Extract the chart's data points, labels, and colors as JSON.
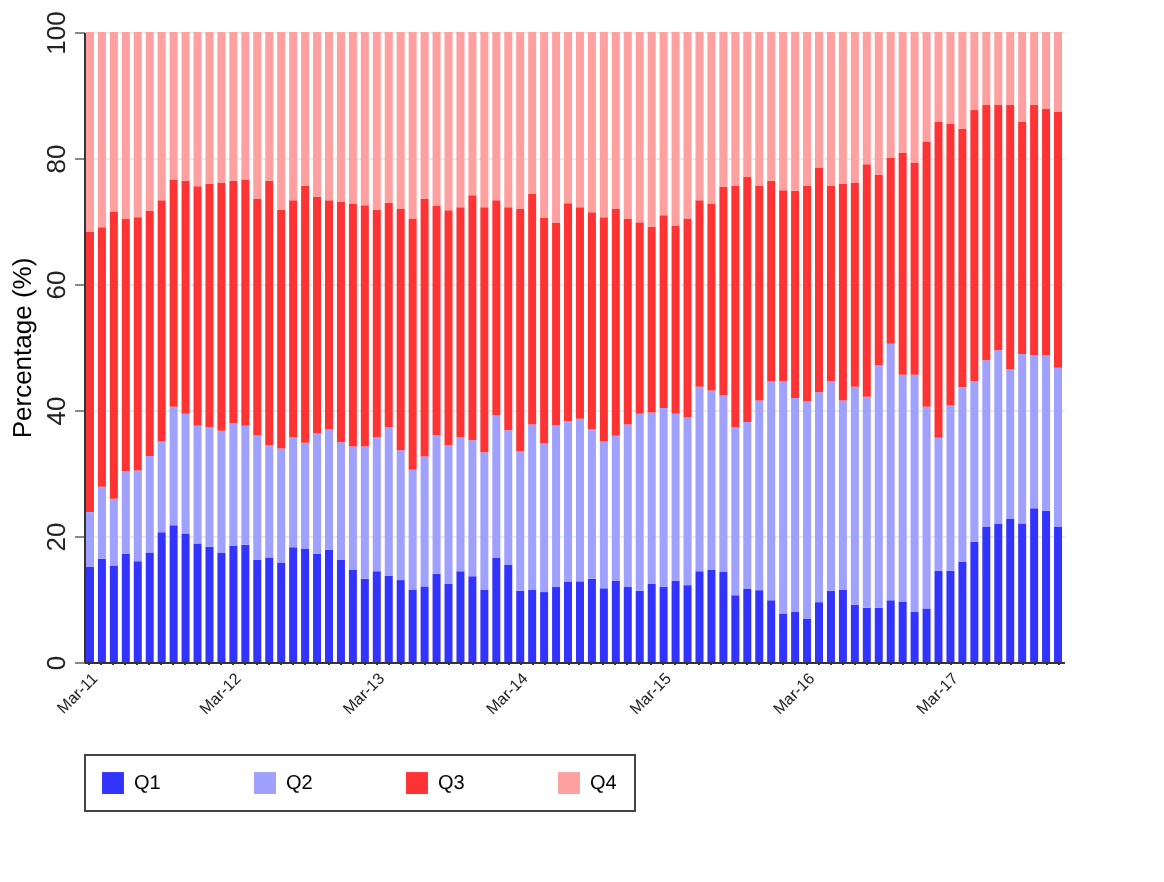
{
  "chart_data": {
    "type": "bar",
    "stacked": true,
    "ylabel": "Percentage (%)",
    "categories": [
      "Mar-11",
      null,
      null,
      null,
      null,
      null,
      null,
      null,
      null,
      null,
      null,
      null,
      "Mar-12",
      null,
      null,
      null,
      null,
      null,
      null,
      null,
      null,
      null,
      null,
      null,
      "Mar-13",
      null,
      null,
      null,
      null,
      null,
      null,
      null,
      null,
      null,
      null,
      null,
      "Mar-14",
      null,
      null,
      null,
      null,
      null,
      null,
      null,
      null,
      null,
      null,
      null,
      "Mar-15",
      null,
      null,
      null,
      null,
      null,
      null,
      null,
      null,
      null,
      null,
      null,
      "Mar-16",
      null,
      null,
      null,
      null,
      null,
      null,
      null,
      null,
      null,
      null,
      null,
      "Mar-17",
      null,
      null,
      null,
      null,
      null,
      null,
      null,
      null,
      null
    ],
    "series": [
      {
        "name": "Q1",
        "color": "#3333ff",
        "values": [
          15.1,
          16.4,
          15.3,
          17.2,
          16.0,
          17.4,
          20.6,
          21.7,
          20.4,
          18.8,
          18.3,
          17.4,
          18.5,
          18.6,
          16.2,
          16.6,
          15.8,
          18.2,
          18.0,
          17.2,
          17.8,
          16.2,
          14.6,
          13.2,
          14.4,
          13.7,
          13.0,
          11.5,
          12.0,
          14.0,
          12.4,
          14.4,
          13.6,
          11.5,
          16.5,
          15.4,
          11.3,
          11.5,
          11.1,
          11.9,
          12.7,
          12.8,
          13.2,
          11.7,
          12.9,
          11.9,
          11.3,
          12.4,
          11.9,
          12.9,
          12.2,
          14.4,
          14.6,
          14.3,
          10.6,
          11.6,
          11.4,
          9.8,
          7.7,
          8.0,
          6.9,
          9.5,
          11.3,
          11.5,
          9.1,
          8.6,
          8.6,
          9.8,
          9.6,
          8.0,
          8.5,
          14.5,
          14.5,
          15.9,
          19.1,
          21.5,
          21.9,
          22.7,
          22.0,
          24.4,
          24.0,
          21.5
        ]
      },
      {
        "name": "Q2",
        "color": "#a0a0ff",
        "values": [
          8.7,
          11.4,
          10.6,
          13.1,
          14.4,
          15.3,
          14.4,
          18.8,
          19.0,
          18.7,
          19.0,
          19.3,
          19.4,
          18.9,
          19.8,
          17.8,
          18.1,
          17.5,
          16.8,
          19.1,
          19.1,
          18.7,
          19.6,
          21.0,
          21.3,
          23.6,
          20.6,
          19.0,
          20.6,
          22.0,
          22.0,
          21.3,
          21.6,
          21.8,
          22.7,
          21.4,
          22.1,
          26.2,
          23.6,
          25.7,
          25.5,
          25.8,
          23.8,
          23.3,
          23.0,
          25.8,
          28.1,
          27.2,
          28.4,
          26.5,
          26.6,
          29.3,
          28.5,
          28.0,
          26.7,
          26.5,
          30.1,
          34.8,
          36.9,
          33.9,
          34.5,
          33.3,
          33.3,
          30.0,
          34.6,
          33.5,
          38.5,
          40.7,
          36.0,
          37.6,
          32.0,
          21.1,
          26.2,
          27.7,
          25.5,
          26.4,
          27.6,
          23.8,
          26.9,
          24.3,
          24.7,
          25.2
        ]
      },
      {
        "name": "Q3",
        "color": "#ff3333",
        "values": [
          44.5,
          41.2,
          45.6,
          40.0,
          40.2,
          38.9,
          38.3,
          36.1,
          37.0,
          38.0,
          38.6,
          39.4,
          38.5,
          39.1,
          37.5,
          42.0,
          37.9,
          37.6,
          40.8,
          37.5,
          36.4,
          38.1,
          38.5,
          38.3,
          36.1,
          35.6,
          38.4,
          39.9,
          40.9,
          36.4,
          37.3,
          36.5,
          38.9,
          38.9,
          34.1,
          35.4,
          38.5,
          36.6,
          35.8,
          32.1,
          34.6,
          33.6,
          34.4,
          35.6,
          36.0,
          32.7,
          30.4,
          29.5,
          30.6,
          29.9,
          31.6,
          29.6,
          29.6,
          33.1,
          38.3,
          38.9,
          34.1,
          31.8,
          30.3,
          32.9,
          34.2,
          35.7,
          31.0,
          34.4,
          32.4,
          36.9,
          30.2,
          29.5,
          35.2,
          33.7,
          42.1,
          50.1,
          44.7,
          41.0,
          43.0,
          40.5,
          38.9,
          41.9,
          36.8,
          39.7,
          39.1,
          40.6
        ]
      },
      {
        "name": "Q4",
        "color": "#ffa0a0",
        "values": [
          31.7,
          31.0,
          28.5,
          29.7,
          29.4,
          28.4,
          26.7,
          23.4,
          23.6,
          24.5,
          24.1,
          23.9,
          23.6,
          23.4,
          26.5,
          23.6,
          28.2,
          26.7,
          24.4,
          26.2,
          26.7,
          27.0,
          27.3,
          27.5,
          28.2,
          27.1,
          28.0,
          29.6,
          26.5,
          27.6,
          28.3,
          27.8,
          25.9,
          27.8,
          26.7,
          27.8,
          28.1,
          25.7,
          29.5,
          30.3,
          27.2,
          27.8,
          28.6,
          29.4,
          28.1,
          29.6,
          30.2,
          30.9,
          29.1,
          30.7,
          29.6,
          26.7,
          27.3,
          24.6,
          24.4,
          23.0,
          24.4,
          23.6,
          25.1,
          25.2,
          24.4,
          21.5,
          24.4,
          24.1,
          23.9,
          21.0,
          22.7,
          20.0,
          19.2,
          20.7,
          17.4,
          14.3,
          14.6,
          15.4,
          12.4,
          11.6,
          11.6,
          11.6,
          14.3,
          11.6,
          12.2,
          12.7
        ]
      }
    ],
    "ylim": [
      0,
      100
    ],
    "yticks": [
      0,
      20,
      40,
      60,
      80,
      100
    ],
    "grid": "y",
    "legend": "bottom"
  }
}
